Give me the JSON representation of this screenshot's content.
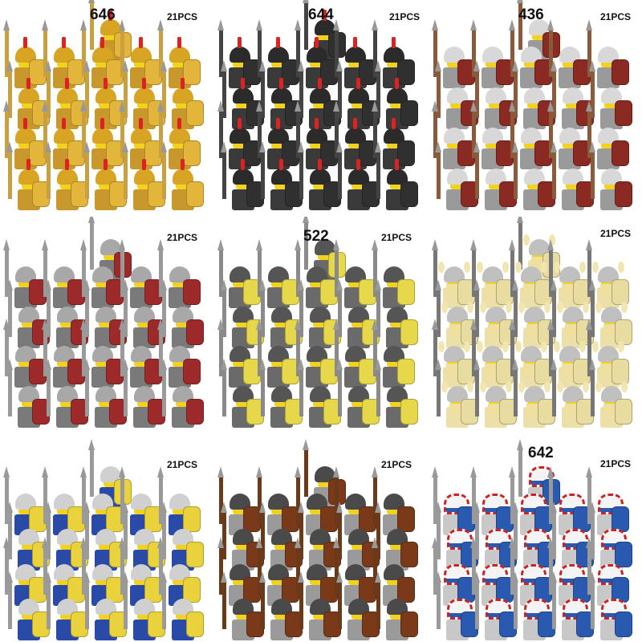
{
  "panels": [
    {
      "code": "646",
      "count": "21PCS",
      "style": {
        "helmet": "#d8a424",
        "body": "#c8982c",
        "shield": "#e3b53a",
        "spear": "#c9a040",
        "plume": true,
        "bg": "#ffffff"
      }
    },
    {
      "code": "644",
      "count": "21PCS",
      "style": {
        "helmet": "#2b2b2b",
        "body": "#3a3a3a",
        "shield": "#303030",
        "spear": "#444444",
        "plume": true,
        "bg": "#ffffff"
      }
    },
    {
      "code": "436",
      "count": "21PCS",
      "style": {
        "helmet": "#d8d8d8",
        "body": "#9a9a9a",
        "shield": "#8a2a22",
        "spear": "#8a5a3a",
        "plume": false,
        "bg": "#ffffff"
      }
    },
    {
      "code": "",
      "count": "21PCS",
      "style": {
        "helmet": "#a8a8a8",
        "body": "#7a7a7a",
        "shield": "#9c2a2a",
        "spear": "#9a9a9a",
        "plume": false,
        "bg": "#ffffff"
      }
    },
    {
      "code": "522",
      "count": "21PCS",
      "style": {
        "helmet": "#555555",
        "body": "#6a6a6a",
        "shield": "#e6d84a",
        "spear": "#8a8a8a",
        "plume": false,
        "bg": "#ffffff"
      }
    },
    {
      "code": "",
      "count": "21PCS",
      "style": {
        "helmet": "#c0c0c0",
        "body": "#ece0a8",
        "shield": "#e8dca0",
        "spear": "#777777",
        "plume": false,
        "horns": true,
        "bg": "#ffffff"
      }
    },
    {
      "code": "",
      "count": "21PCS",
      "style": {
        "helmet": "#d0d0d0",
        "body": "#2a4aa8",
        "shield": "#e9d23c",
        "spear": "#9a9a9a",
        "plume": false,
        "bg": "#ffffff"
      }
    },
    {
      "code": "",
      "count": "21PCS",
      "style": {
        "helmet": "#4a4a4a",
        "body": "#9a9a9a",
        "shield": "#7a3a1a",
        "spear": "#6a3a1a",
        "plume": false,
        "bg": "#ffffff"
      }
    },
    {
      "code": "642",
      "count": "21PCS",
      "style": {
        "helmet": "#f4f4f4",
        "body": "#c8c8c8",
        "shield": "#2a5ab0",
        "spear": "#9a9a9a",
        "plume": false,
        "headdress": true,
        "bg": "#ffffff"
      }
    }
  ]
}
